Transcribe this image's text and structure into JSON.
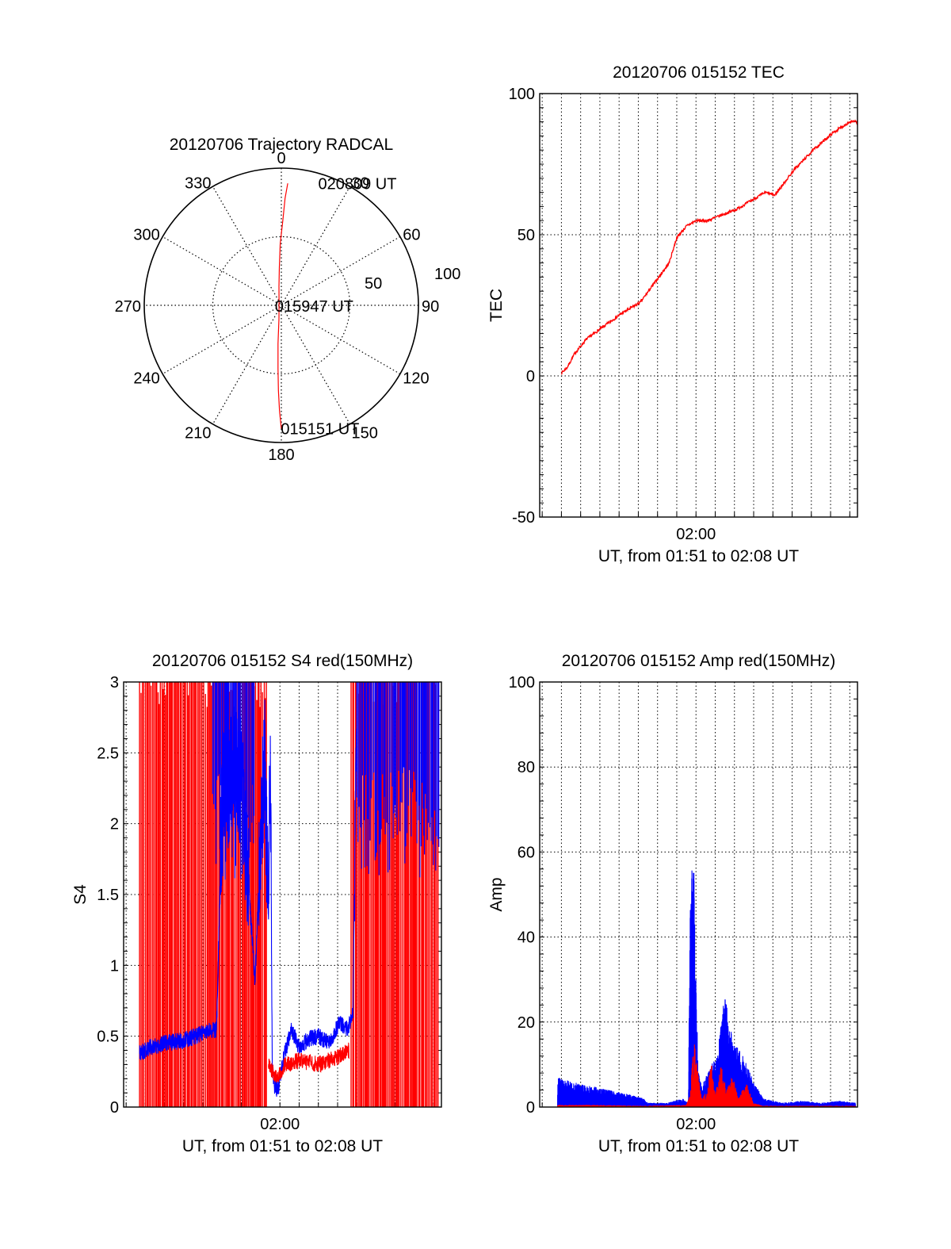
{
  "chart_data": [
    {
      "type": "polar",
      "title": "20120706 Trajectory RADCAL",
      "azimuth_labels": [
        "0",
        "30",
        "60",
        "90",
        "120",
        "150",
        "180",
        "210",
        "240",
        "270",
        "300",
        "330"
      ],
      "ring_labels": [
        "50",
        "100"
      ],
      "annotations": [
        {
          "text": "020809 UT",
          "az": 14,
          "r": 92
        },
        {
          "text": "015947 UT",
          "az": 90,
          "r": 4
        },
        {
          "text": "015151 UT",
          "az": 177,
          "r": 93
        }
      ],
      "series": [
        {
          "color": "#ff0000",
          "points": [
            [
              3,
              89
            ],
            [
              2,
              78
            ],
            [
              1,
              62
            ],
            [
              359,
              45
            ],
            [
              357,
              28
            ],
            [
              353,
              14
            ],
            [
              320,
              2.6
            ],
            [
              190,
              10
            ],
            [
              185,
              28
            ],
            [
              183,
              46
            ],
            [
              182,
              62
            ],
            [
              181,
              77
            ],
            [
              180,
              90
            ]
          ]
        }
      ]
    },
    {
      "type": "line",
      "title": "20120706 015152 TEC",
      "xlabel": "UT, from 01:51 to 02:08 UT",
      "ylabel": "TEC",
      "xlim": [
        111.87,
        128.4
      ],
      "ylim": [
        -50,
        100
      ],
      "xticks": [
        {
          "value": 120,
          "label": "02:00"
        }
      ],
      "yticks": [
        -50,
        0,
        50,
        100
      ],
      "series": [
        {
          "color": "#ff0000",
          "x": [
            113,
            113.3,
            113.7,
            114.3,
            115.1,
            116.1,
            117.1,
            118.6,
            119.0,
            119.5,
            120.0,
            120.6,
            122.1,
            123.6,
            124.1,
            125.1,
            126.1,
            127.1,
            128.0,
            128.4
          ],
          "y": [
            1,
            3,
            8,
            13,
            17,
            22,
            26,
            40,
            49,
            53,
            55,
            55,
            59,
            65,
            64,
            73,
            80,
            86,
            90,
            90
          ]
        }
      ]
    },
    {
      "type": "line",
      "title": "20120706 015152 S4 red(150MHz)",
      "xlabel": "UT, from 01:51 to 02:08 UT",
      "ylabel": "S4",
      "xlim": [
        111.87,
        128.4
      ],
      "ylim": [
        0,
        3
      ],
      "xticks": [
        {
          "value": 120,
          "label": "02:00"
        }
      ],
      "yticks": [
        0,
        0.5,
        1,
        1.5,
        2,
        2.5,
        3
      ],
      "series": [
        {
          "color": "#0000ff",
          "x": [
            112.7,
            113.2,
            114.0,
            115.0,
            116.0,
            116.7,
            117.0,
            117.6,
            118.0,
            118.7,
            119.2,
            119.4,
            119.5,
            119.6,
            119.7,
            119.9,
            120.2,
            120.6,
            121.0,
            121.5,
            122.0,
            122.6,
            123.1,
            123.5,
            123.8,
            124.0
          ],
          "y": [
            0.38,
            0.42,
            0.45,
            0.47,
            0.52,
            0.55,
            2.2,
            2.4,
            2.3,
            0.9,
            2.5,
            1.3,
            2.6,
            0.3,
            0.15,
            0.12,
            0.35,
            0.55,
            0.42,
            0.48,
            0.5,
            0.45,
            0.6,
            0.55,
            0.65,
            3.0
          ]
        }
      ],
      "vertical_bursts": [
        {
          "color": "#ff0000",
          "from": 112.7,
          "to": 119.3
        },
        {
          "color": "#ff0000",
          "from": 123.7,
          "to": 128.3
        },
        {
          "color": "#0000ff",
          "from": 116.5,
          "to": 118.7
        },
        {
          "color": "#0000ff",
          "from": 124.0,
          "to": 128.3
        }
      ]
    },
    {
      "type": "line",
      "title": "20120706 015152 Amp red(150MHz)",
      "xlabel": "UT, from 01:51 to 02:08 UT",
      "ylabel": "Amp",
      "xlim": [
        111.87,
        128.4
      ],
      "ylim": [
        0,
        100
      ],
      "xticks": [
        {
          "value": 120,
          "label": "02:00"
        }
      ],
      "yticks": [
        0,
        20,
        40,
        60,
        80,
        100
      ],
      "series": [
        {
          "color": "#0000ff",
          "x": [
            112.8,
            113.5,
            114.5,
            115.5,
            116.5,
            117.3,
            117.5,
            118.5,
            119.3,
            119.6,
            119.7,
            119.8,
            119.9,
            120.1,
            120.3,
            120.6,
            121.0,
            121.3,
            121.5,
            121.7,
            122.0,
            122.5,
            123.0,
            123.5,
            124.5,
            125.5,
            126.5,
            127.5,
            128.3
          ],
          "y": [
            7,
            6,
            5,
            4,
            3,
            2,
            1,
            1,
            2,
            1,
            50,
            60,
            55,
            10,
            5,
            8,
            12,
            20,
            28,
            20,
            15,
            12,
            6,
            2,
            1,
            1.5,
            1,
            1.5,
            1
          ]
        },
        {
          "color": "#ff0000",
          "x": [
            112.8,
            115,
            117,
            119.5,
            119.7,
            119.9,
            120.1,
            120.3,
            120.6,
            120.8,
            121.0,
            121.3,
            121.6,
            121.9,
            122.2,
            122.6,
            123.0,
            123.5,
            125,
            128.3
          ],
          "y": [
            0.5,
            0.5,
            0.3,
            0.5,
            3,
            17,
            8,
            2,
            4,
            12,
            3,
            10,
            4,
            8,
            2,
            6,
            1,
            0.3,
            0.3,
            0.3
          ]
        }
      ]
    }
  ]
}
